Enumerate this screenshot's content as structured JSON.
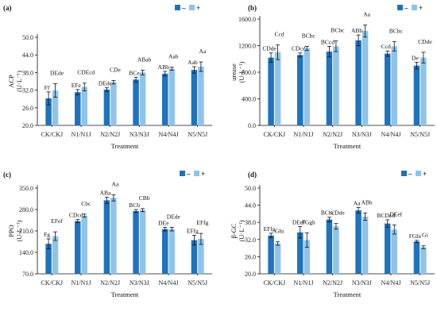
{
  "colors": {
    "minus": "#1e73be",
    "plus": "#8fc3ea"
  },
  "legend": {
    "minus_label": "–",
    "plus_label": "+"
  },
  "chart_data": [
    {
      "panel": "(a)",
      "type": "bar",
      "xlabel": "Treatment",
      "ylabel": "ACP",
      "yunit": "(U·L⁻¹)",
      "ylim": [
        20,
        50
      ],
      "yticks": [
        "20.0",
        "26.0",
        "32.0",
        "38.0",
        "44.0",
        "50.0"
      ],
      "categories": [
        "CK/CKJ",
        "N1/N1J",
        "N2/N2J",
        "N3/N3J",
        "N4/N4J",
        "N5/N5J"
      ],
      "series": [
        {
          "name": "–",
          "values": [
            29.2,
            31.3,
            32.2,
            35.6,
            37.6,
            38.9
          ],
          "errors": [
            2.2,
            0.9,
            0.6,
            0.8,
            0.8,
            1.1
          ],
          "labels": [
            "Ff",
            "EFe",
            "DEde",
            "BCe",
            "ABb",
            "Aab"
          ]
        },
        {
          "name": "+",
          "values": [
            31.9,
            33.1,
            34.7,
            38.0,
            39.3,
            40.0
          ],
          "errors": [
            2.3,
            1.3,
            0.6,
            0.8,
            0.5,
            1.6
          ],
          "labels": [
            "DEde",
            "CDEcd",
            "CDe",
            "ABab",
            "Aab",
            "Aa"
          ]
        }
      ]
    },
    {
      "panel": "(b)",
      "type": "bar",
      "xlabel": "Treatment",
      "ylabel": "urease",
      "yunit": "(U·L⁻¹)",
      "ylim": [
        0,
        1600
      ],
      "yticks": [
        "0.0",
        "400.0",
        "800.0",
        "1200.0",
        "1600.0"
      ],
      "categories": [
        "CK/CKJ",
        "N1/N1J",
        "N2/N2J",
        "N3/N3J",
        "N4/N4J",
        "N5/N5J"
      ],
      "series": [
        {
          "name": "–",
          "values": [
            1020,
            1060,
            1110,
            1280,
            1080,
            900
          ],
          "errors": [
            70,
            30,
            80,
            80,
            40,
            50
          ],
          "labels": [
            "CDde",
            "CDcd",
            "BCcd",
            "ABb",
            "Ccd",
            "De"
          ]
        },
        {
          "name": "+",
          "values": [
            1100,
            1160,
            1190,
            1420,
            1190,
            1020
          ],
          "errors": [
            110,
            30,
            80,
            90,
            70,
            80
          ],
          "labels": [
            "Ccd",
            "BCbc",
            "BCbc",
            "Aa",
            "BCbc",
            "CDde"
          ]
        }
      ]
    },
    {
      "panel": "(c)",
      "type": "bar",
      "xlabel": "Treatment",
      "ylabel": "PPO",
      "yunit": "(U·L⁻¹)",
      "ylim": [
        70,
        350
      ],
      "yticks": [
        "70.0",
        "140.0",
        "210.0",
        "280.0",
        "350.0"
      ],
      "categories": [
        "CK/CKJ",
        "N1/N1J",
        "N2/N2J",
        "N3/N3J",
        "N4/N4J",
        "N5/N5J"
      ],
      "series": [
        {
          "name": "–",
          "values": [
            168,
            242,
            310,
            275,
            216,
            180
          ],
          "errors": [
            16,
            5,
            10,
            5,
            6,
            16
          ],
          "labels": [
            "Fg",
            "CDcd",
            "ABa",
            "BCb",
            "DEe",
            "EFfg"
          ]
        },
        {
          "name": "+",
          "values": [
            193,
            260,
            318,
            278,
            216,
            184
          ],
          "errors": [
            14,
            5,
            10,
            5,
            6,
            18
          ],
          "labels": [
            "EFef",
            "Cbc",
            "Aa",
            "CBb",
            "DEde",
            "EFfg"
          ]
        }
      ]
    },
    {
      "panel": "(d)",
      "type": "bar",
      "xlabel": "Treatment",
      "ylabel": "β-GC",
      "yunit": "(U·L⁻¹)",
      "ylim": [
        20,
        50
      ],
      "yticks": [
        "20.0",
        "26.0",
        "32.0",
        "38.0",
        "44.0",
        "50.0"
      ],
      "categories": [
        "CK/CKJ",
        "N1/N1J",
        "N2/N2J",
        "N3/N3J",
        "N4/N4J",
        "N5/N5J"
      ],
      "series": [
        {
          "name": "–",
          "values": [
            33.4,
            34.5,
            39.0,
            42.2,
            37.6,
            31.3
          ],
          "errors": [
            0.8,
            2.0,
            0.8,
            1.0,
            1.3,
            0.4
          ],
          "labels": [
            "EFfg",
            "DEef",
            "BCbc",
            "Aa",
            "BCDcd",
            "FGhi"
          ]
        },
        {
          "name": "+",
          "values": [
            30.6,
            31.8,
            36.6,
            40.0,
            35.5,
            29.3
          ],
          "errors": [
            0.6,
            2.5,
            1.0,
            1.3,
            1.6,
            0.5
          ],
          "labels": [
            "Ghi",
            "FGgh",
            "CDde",
            "ABb",
            "DEef",
            "Gi"
          ]
        }
      ]
    }
  ]
}
